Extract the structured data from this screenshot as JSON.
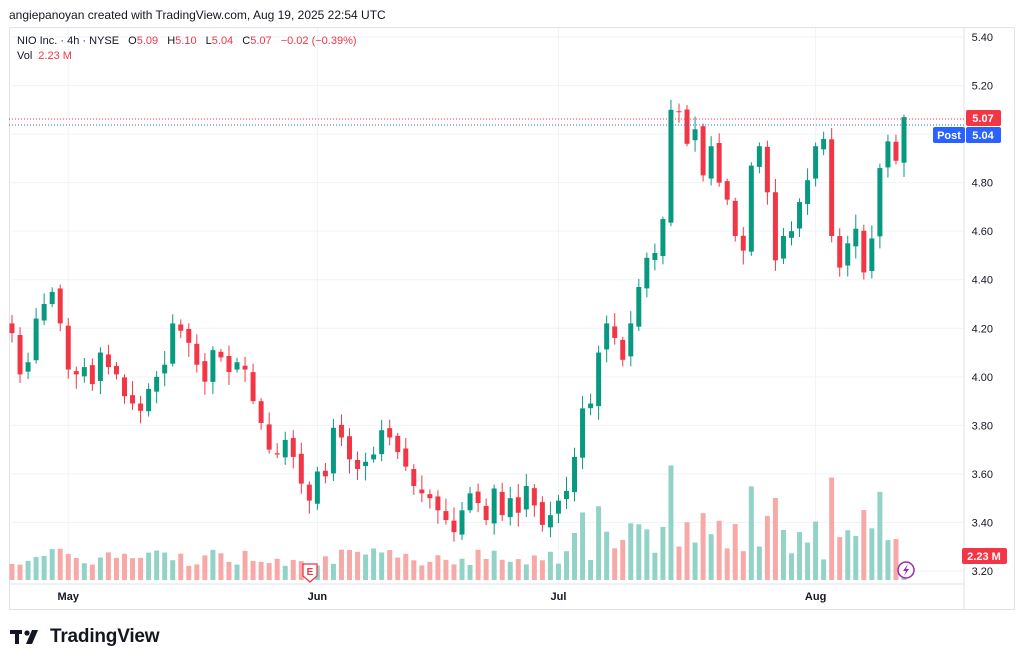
{
  "header": {
    "text": "angiepanoyan created with TradingView.com, Aug 19, 2025 22:54 UTC"
  },
  "legend": {
    "symbol": "NIO Inc. · 4h · NYSE",
    "open_label": "O",
    "open": "5.09",
    "high_label": "H",
    "high": "5.10",
    "low_label": "L",
    "low": "5.04",
    "close_label": "C",
    "close": "5.07",
    "change": "−0.02 (−0.39%)",
    "vol_label": "Vol",
    "vol": "2.23 M"
  },
  "tags": {
    "last_price": "5.07",
    "post_label": "Post",
    "post_price": "5.04",
    "volume": "2.23 M",
    "earnings_marker": "E"
  },
  "footer": {
    "brand": "TradingView"
  },
  "colors": {
    "up": "#089981",
    "down": "#f23645",
    "vol_up": "#92d2c7",
    "vol_down": "#f7a9a7",
    "post": "#2962ff"
  },
  "chart_data": {
    "type": "candlestick",
    "title": "NIO Inc. · 4h · NYSE",
    "y_range": [
      3.16,
      5.46
    ],
    "y_ticks": [
      "5.40",
      "5.20",
      "5.00",
      "4.80",
      "4.60",
      "4.40",
      "4.20",
      "4.00",
      "3.80",
      "3.60",
      "3.40",
      "3.20"
    ],
    "x_labels": [
      {
        "label": "May",
        "index": 7
      },
      {
        "label": "Jun",
        "index": 38
      },
      {
        "label": "Jul",
        "index": 68
      },
      {
        "label": "Aug",
        "index": 100
      }
    ],
    "earnings_index": 40,
    "grid": true,
    "series_close": [
      4.18,
      4.01,
      4.06,
      4.24,
      4.3,
      4.35,
      4.22,
      4.03,
      4.01,
      4.04,
      3.97,
      4.1,
      4.04,
      4.01,
      3.92,
      3.89,
      3.86,
      3.95,
      4.0,
      4.05,
      4.22,
      4.19,
      4.14,
      4.05,
      3.98,
      4.11,
      4.08,
      4.02,
      4.06,
      4.03,
      3.9,
      3.81,
      3.7,
      3.68,
      3.74,
      3.67,
      3.56,
      3.49,
      3.61,
      3.59,
      3.79,
      3.75,
      3.66,
      3.62,
      3.65,
      3.68,
      3.78,
      3.75,
      3.69,
      3.63,
      3.55,
      3.52,
      3.5,
      3.45,
      3.41,
      3.36,
      3.45,
      3.52,
      3.48,
      3.41,
      3.54,
      3.43,
      3.5,
      3.44,
      3.55,
      3.47,
      3.39,
      3.43,
      3.49,
      3.53,
      3.67,
      3.87,
      3.89,
      4.1,
      4.22,
      4.16,
      4.07,
      4.22,
      4.37,
      4.49,
      4.51,
      4.65,
      5.1,
      5.09,
      4.96,
      5.02,
      4.83,
      4.95,
      4.8,
      4.73,
      4.58,
      4.52,
      4.87,
      4.95,
      4.76,
      4.48,
      4.58,
      4.6,
      4.72,
      4.81,
      4.95,
      4.98,
      4.58,
      4.45,
      4.55,
      4.61,
      4.43,
      4.57,
      4.86,
      4.97,
      4.89,
      5.07
    ],
    "volume_unit": "M",
    "last_volume": 2.23
  }
}
